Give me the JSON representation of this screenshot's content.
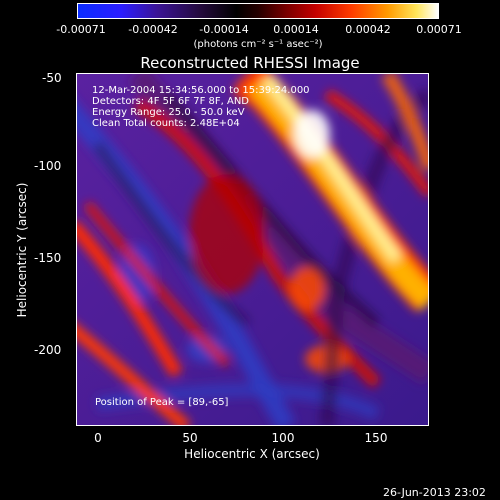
{
  "colorbar": {
    "ticks": [
      "-0.00071",
      "-0.00042",
      "-0.00014",
      "0.00014",
      "0.00042",
      "0.00071"
    ],
    "unit": "(photons cm⁻² s⁻¹ asec⁻²)"
  },
  "image": {
    "title": "Reconstructed RHESSI Image",
    "annotation_lines": [
      "12-Mar-2004 15:34:56.000 to 15:39:24.000",
      "Detectors: 4F 5F 6F 7F 8F, AND",
      "Energy Range: 25.0 - 50.0 keV",
      "Clean      Total counts: 2.48E+04"
    ],
    "peak_text": "Position of Peak = [89,-65]",
    "xlabel": "Heliocentric X (arcsec)",
    "ylabel": "Heliocentric Y (arcsec)",
    "xticks": [
      "0",
      "50",
      "100",
      "150"
    ],
    "yticks": [
      "-50",
      "-100",
      "-150",
      "-200"
    ]
  },
  "footer": {
    "timestamp": "26-Jun-2013 23:02"
  }
}
